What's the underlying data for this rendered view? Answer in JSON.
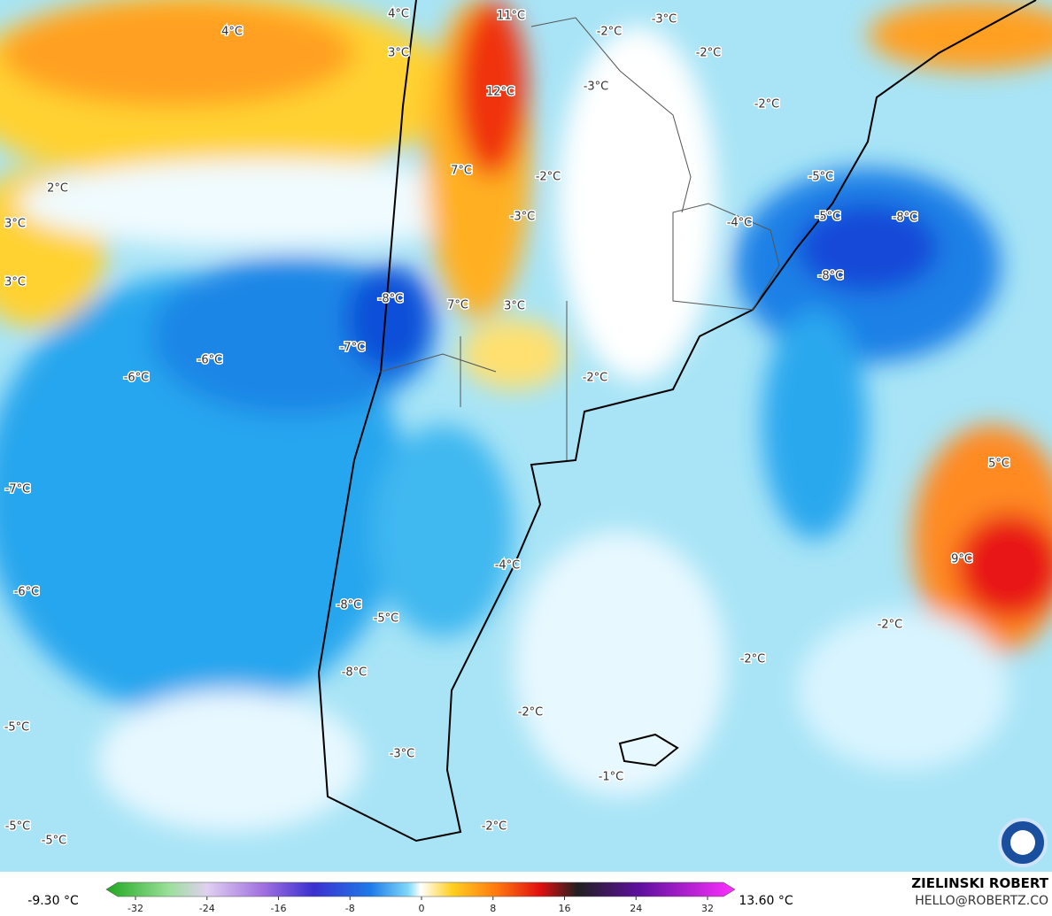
{
  "map": {
    "labels": [
      "4°C",
      "11°C",
      "-3°C",
      "4°C",
      "-2°C",
      "3°C",
      "-2°C",
      "-3°C",
      "12°C",
      "-2°C",
      "7°C",
      "-2°C",
      "-5°C",
      "2°C",
      "-3°C",
      "-4°C",
      "-5°C",
      "-8°C",
      "3°C",
      "-8°C",
      "3°C",
      "-8°C",
      "7°C",
      "3°C",
      "-7°C",
      "-6°C",
      "-6°C",
      "-2°C",
      "5°C",
      "-7°C",
      "-4°C",
      "9°C",
      "-6°C",
      "-8°C",
      "-5°C",
      "-2°C",
      "-2°C",
      "-8°C",
      "-2°C",
      "-5°C",
      "-3°C",
      "-1°C",
      "-2°C",
      "-5°C",
      "-5°C"
    ]
  },
  "colorbar": {
    "min_label": "-9.30 °C",
    "max_label": "13.60 °C",
    "ticks": [
      -32,
      -24,
      -16,
      -8,
      0,
      8,
      16,
      24,
      32
    ]
  },
  "credit": {
    "name": "ZIELINSKI ROBERT",
    "contact": "HELLO@ROBERTZ.CO"
  }
}
